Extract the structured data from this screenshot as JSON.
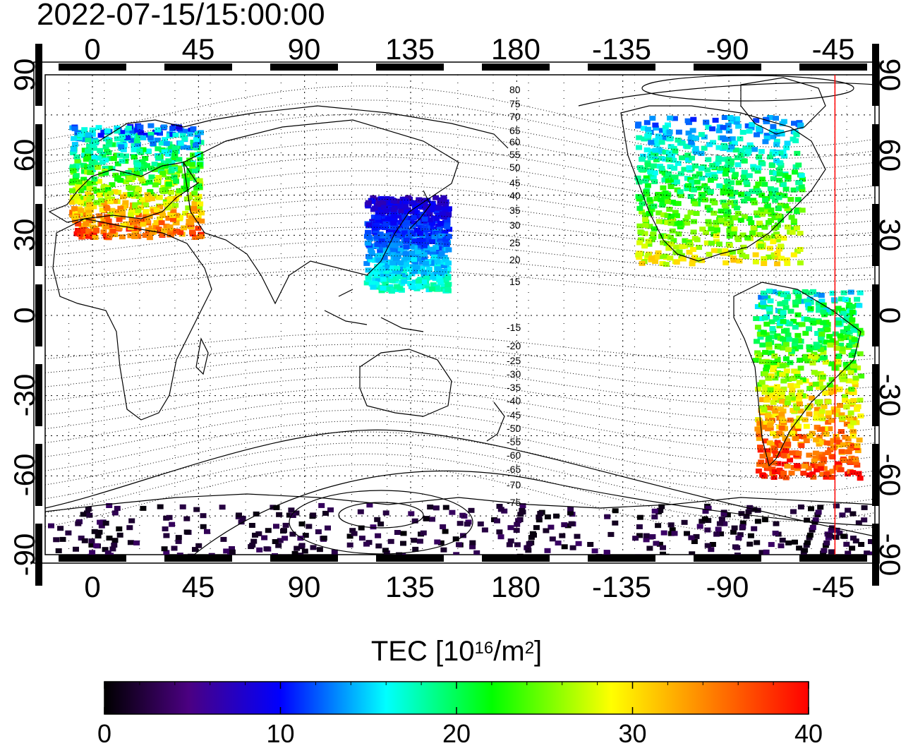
{
  "title": "2022-07-15/15:00:00",
  "map": {
    "top_lon_ticks": [
      "0",
      "45",
      "90",
      "135",
      "180",
      "-135",
      "-90",
      "-45"
    ],
    "bottom_lon_ticks": [
      "0",
      "45",
      "90",
      "135",
      "180",
      "-135",
      "-90",
      "-45"
    ],
    "left_lat_ticks": [
      "90",
      "60",
      "30",
      "0",
      "-30",
      "-60",
      "-90"
    ],
    "right_lat_ticks": [
      "90",
      "60",
      "30",
      "0",
      "-30",
      "-60",
      "-90"
    ],
    "north_contour_labels": [
      "80",
      "75",
      "70",
      "65",
      "60",
      "55",
      "50",
      "45",
      "40",
      "35",
      "30",
      "25",
      "20",
      "15"
    ],
    "south_contour_labels": [
      "-15",
      "-20",
      "-25",
      "-30",
      "-35",
      "-40",
      "-45",
      "-50",
      "-55",
      "-60",
      "-65",
      "-70",
      "-75"
    ],
    "terminator_longitude": "-45",
    "colors": {
      "terminator": "#ff0000",
      "grid": "#000000",
      "coast": "#000000"
    }
  },
  "colorbar": {
    "title_main": "TEC  [10",
    "title_sup1": "16",
    "title_mid": "/m",
    "title_sup2": "2",
    "title_end": "]",
    "tick_labels": [
      "0",
      "10",
      "20",
      "30",
      "40"
    ],
    "range": [
      0,
      40
    ],
    "colors": [
      "#000000",
      "#5a00a0",
      "#0000ff",
      "#00ffff",
      "#00ff00",
      "#ffff00",
      "#ff8000",
      "#ff0000"
    ]
  },
  "tec_regions": [
    {
      "name": "europe",
      "lon": [
        -10,
        45
      ],
      "lat": [
        30,
        72
      ],
      "tec": [
        8,
        38
      ]
    },
    {
      "name": "north-america",
      "lon": [
        -130,
        -60
      ],
      "lat": [
        20,
        75
      ],
      "tec": [
        10,
        30
      ]
    },
    {
      "name": "south-america",
      "lon": [
        -80,
        -35
      ],
      "lat": [
        -60,
        10
      ],
      "tec": [
        12,
        40
      ]
    },
    {
      "name": "east-asia",
      "lon": [
        115,
        150
      ],
      "lat": [
        10,
        45
      ],
      "tec": [
        6,
        18
      ]
    },
    {
      "name": "antarctica",
      "lon": [
        -180,
        180
      ],
      "lat": [
        -90,
        -70
      ],
      "tec": [
        0,
        4
      ]
    }
  ]
}
